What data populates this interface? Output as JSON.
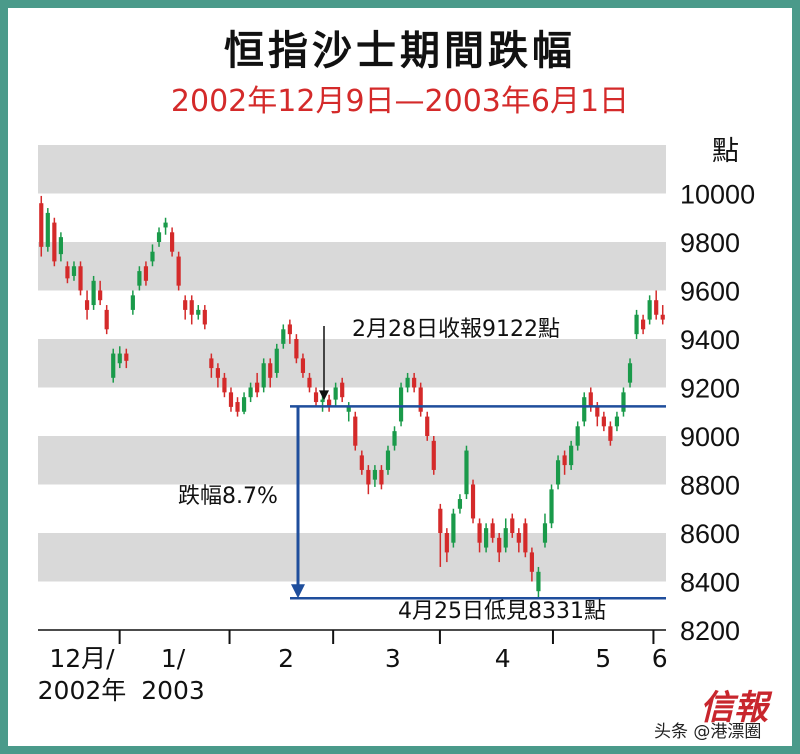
{
  "title": "恒指沙士期間跌幅",
  "subtitle": "2002年12月9日—2003年6月1日",
  "logo_text": "信報",
  "watermark": "头条 @港漂圈",
  "colors": {
    "up": "#1a9a4a",
    "down": "#d42a2a",
    "band": "#d9d9d9",
    "accent": "#1f4e9c",
    "frame": "#4a9a8a"
  },
  "chart_data": {
    "type": "candlestick",
    "title": "恒指沙士期間跌幅",
    "subtitle": "2002年12月9日—2003年6月1日",
    "ylabel": "點",
    "ylim": [
      8200,
      10200
    ],
    "yticks": [
      8200,
      8400,
      8600,
      8800,
      9000,
      9200,
      9400,
      9600,
      9800,
      10000
    ],
    "xaxis_labels": [
      {
        "label": "12月/",
        "label2": "2002年",
        "pos": 0.07
      },
      {
        "label": "1/",
        "label2": "2003",
        "pos": 0.215
      },
      {
        "label": "2",
        "label2": "",
        "pos": 0.395
      },
      {
        "label": "3",
        "label2": "",
        "pos": 0.565
      },
      {
        "label": "4",
        "label2": "",
        "pos": 0.74
      },
      {
        "label": "5",
        "label2": "",
        "pos": 0.9
      },
      {
        "label": "6",
        "label2": "",
        "pos": 0.99
      }
    ],
    "month_separators": [
      0.13,
      0.305,
      0.47,
      0.64,
      0.82,
      0.98
    ],
    "candles": [
      [
        9960,
        9780,
        9990,
        9740
      ],
      [
        9780,
        9920,
        9940,
        9760
      ],
      [
        9880,
        9720,
        9900,
        9700
      ],
      [
        9750,
        9820,
        9840,
        9720
      ],
      [
        9700,
        9650,
        9720,
        9630
      ],
      [
        9660,
        9700,
        9720,
        9640
      ],
      [
        9700,
        9600,
        9720,
        9580
      ],
      [
        9560,
        9520,
        9600,
        9480
      ],
      [
        9540,
        9640,
        9660,
        9520
      ],
      [
        9600,
        9560,
        9640,
        9540
      ],
      [
        9520,
        9440,
        9540,
        9420
      ],
      [
        9240,
        9340,
        9360,
        9220
      ],
      [
        9300,
        9340,
        9370,
        9280
      ],
      [
        9340,
        9310,
        9360,
        9280
      ],
      [
        9520,
        9580,
        9600,
        9500
      ],
      [
        9620,
        9680,
        9700,
        9600
      ],
      [
        9700,
        9640,
        9720,
        9620
      ],
      [
        9720,
        9760,
        9790,
        9700
      ],
      [
        9800,
        9840,
        9860,
        9780
      ],
      [
        9860,
        9880,
        9900,
        9830
      ],
      [
        9840,
        9760,
        9860,
        9740
      ],
      [
        9740,
        9620,
        9760,
        9600
      ],
      [
        9560,
        9520,
        9580,
        9480
      ],
      [
        9560,
        9500,
        9580,
        9460
      ],
      [
        9500,
        9520,
        9540,
        9480
      ],
      [
        9520,
        9460,
        9540,
        9440
      ],
      [
        9320,
        9280,
        9340,
        9240
      ],
      [
        9280,
        9240,
        9300,
        9200
      ],
      [
        9240,
        9180,
        9260,
        9160
      ],
      [
        9180,
        9120,
        9200,
        9100
      ],
      [
        9140,
        9100,
        9160,
        9080
      ],
      [
        9100,
        9160,
        9180,
        9090
      ],
      [
        9160,
        9200,
        9220,
        9140
      ],
      [
        9220,
        9180,
        9260,
        9160
      ],
      [
        9200,
        9300,
        9320,
        9180
      ],
      [
        9300,
        9240,
        9320,
        9200
      ],
      [
        9260,
        9360,
        9380,
        9240
      ],
      [
        9380,
        9440,
        9460,
        9360
      ],
      [
        9460,
        9420,
        9480,
        9380
      ],
      [
        9400,
        9320,
        9420,
        9300
      ],
      [
        9320,
        9260,
        9340,
        9240
      ],
      [
        9240,
        9200,
        9260,
        9180
      ],
      [
        9180,
        9140,
        9200,
        9120
      ],
      [
        9140,
        9150,
        9180,
        9100
      ],
      [
        9150,
        9122,
        9170,
        9100
      ],
      [
        9150,
        9200,
        9220,
        9120
      ],
      [
        9220,
        9160,
        9240,
        9140
      ],
      [
        9100,
        9120,
        9140,
        9060
      ],
      [
        9080,
        8960,
        9100,
        8940
      ],
      [
        8920,
        8860,
        8940,
        8840
      ],
      [
        8860,
        8800,
        8880,
        8760
      ],
      [
        8820,
        8860,
        8880,
        8790
      ],
      [
        8860,
        8800,
        8880,
        8780
      ],
      [
        8860,
        8940,
        8960,
        8840
      ],
      [
        8960,
        9020,
        9040,
        8940
      ],
      [
        9060,
        9200,
        9220,
        9040
      ],
      [
        9200,
        9240,
        9260,
        9180
      ],
      [
        9240,
        9200,
        9260,
        9180
      ],
      [
        9200,
        9100,
        9220,
        9080
      ],
      [
        9080,
        9000,
        9100,
        8980
      ],
      [
        8980,
        8860,
        9000,
        8840
      ],
      [
        8700,
        8600,
        8720,
        8460
      ],
      [
        8600,
        8520,
        8620,
        8480
      ],
      [
        8560,
        8680,
        8700,
        8540
      ],
      [
        8700,
        8740,
        8760,
        8680
      ],
      [
        8760,
        8940,
        8960,
        8740
      ],
      [
        8800,
        8660,
        8820,
        8640
      ],
      [
        8640,
        8560,
        8660,
        8520
      ],
      [
        8540,
        8620,
        8640,
        8520
      ],
      [
        8640,
        8580,
        8660,
        8560
      ],
      [
        8580,
        8520,
        8600,
        8480
      ],
      [
        8540,
        8620,
        8660,
        8520
      ],
      [
        8660,
        8600,
        8680,
        8580
      ],
      [
        8600,
        8560,
        8620,
        8520
      ],
      [
        8640,
        8520,
        8660,
        8500
      ],
      [
        8520,
        8440,
        8540,
        8400
      ],
      [
        8360,
        8440,
        8460,
        8331
      ],
      [
        8560,
        8640,
        8680,
        8540
      ],
      [
        8640,
        8780,
        8800,
        8620
      ],
      [
        8800,
        8900,
        8920,
        8780
      ],
      [
        8920,
        8880,
        8940,
        8840
      ],
      [
        8880,
        8960,
        8980,
        8860
      ],
      [
        8960,
        9040,
        9060,
        8940
      ],
      [
        9060,
        9160,
        9180,
        9040
      ],
      [
        9180,
        9120,
        9200,
        9100
      ],
      [
        9120,
        9080,
        9140,
        9040
      ],
      [
        9080,
        9040,
        9100,
        9020
      ],
      [
        9040,
        8980,
        9060,
        8960
      ],
      [
        9040,
        9080,
        9100,
        9020
      ],
      [
        9100,
        9180,
        9200,
        9080
      ],
      [
        9220,
        9300,
        9320,
        9200
      ],
      [
        9420,
        9500,
        9520,
        9400
      ],
      [
        9480,
        9440,
        9500,
        9420
      ],
      [
        9480,
        9560,
        9580,
        9460
      ],
      [
        9560,
        9500,
        9600,
        9480
      ],
      [
        9500,
        9480,
        9540,
        9460
      ]
    ],
    "annotations": [
      {
        "text": "2月28日收報9122點",
        "value": 9122
      },
      {
        "text": "跌幅8.7%",
        "value": 8.7
      },
      {
        "text": "4月25日低見8331點",
        "value": 8331
      }
    ],
    "reference_lines": [
      9122,
      8331
    ]
  }
}
